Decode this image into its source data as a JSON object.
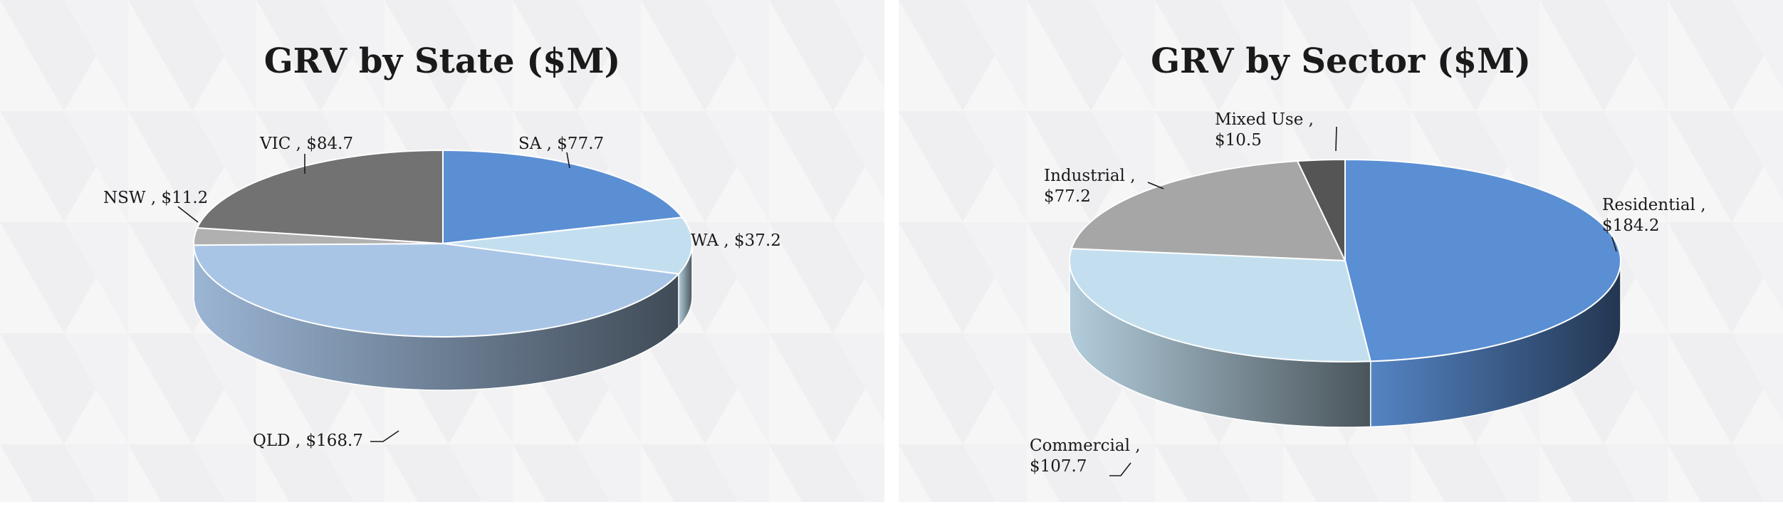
{
  "chart_data": [
    {
      "type": "pie",
      "title": "GRV by State ($M)",
      "categories": [
        "SA",
        "WA",
        "QLD",
        "NSW",
        "VIC"
      ],
      "values": [
        77.7,
        37.2,
        168.7,
        11.2,
        84.7
      ],
      "data_labels": [
        "SA , $77.7",
        "WA , $37.2",
        "QLD , $168.7",
        "NSW , $11.2",
        "VIC , $84.7"
      ],
      "colors": [
        "#5b8fd4",
        "#c3dfef",
        "#a9c5e6",
        "#b0b0b0",
        "#727272"
      ],
      "legend": "none",
      "style": "3d"
    },
    {
      "type": "pie",
      "title": "GRV by Sector ($M)",
      "categories": [
        "Residential",
        "Commercial",
        "Industrial",
        "Mixed Use"
      ],
      "values": [
        184.2,
        107.7,
        77.2,
        10.5
      ],
      "data_labels": [
        [
          "Residential ,",
          "$184.2"
        ],
        [
          "Commercial ,",
          "$107.7"
        ],
        [
          "Industrial ,",
          "$77.2"
        ],
        [
          "Mixed Use ,",
          "$10.5"
        ]
      ],
      "colors": [
        "#5b8fd4",
        "#c3dfef",
        "#a6a6a6",
        "#555555"
      ],
      "legend": "none",
      "style": "3d"
    }
  ]
}
